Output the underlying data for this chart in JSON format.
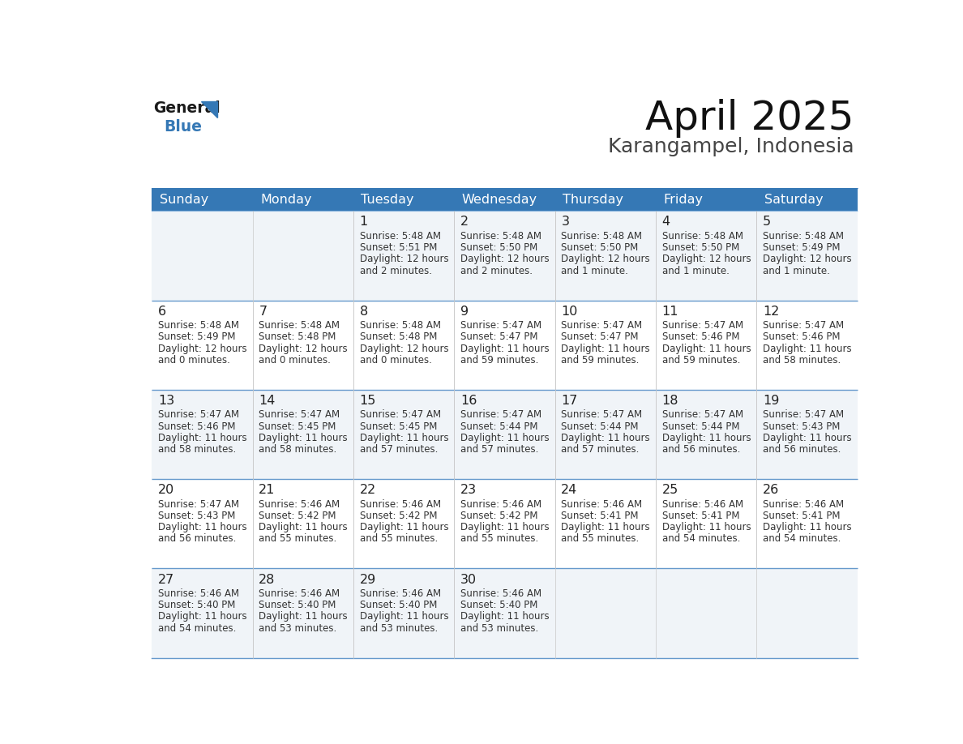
{
  "title": "April 2025",
  "subtitle": "Karangampel, Indonesia",
  "header_bg_color": "#3578b5",
  "header_text_color": "#ffffff",
  "header_days": [
    "Sunday",
    "Monday",
    "Tuesday",
    "Wednesday",
    "Thursday",
    "Friday",
    "Saturday"
  ],
  "row1_bg": "#f0f4f8",
  "row2_bg": "#ffffff",
  "cell_text_color": "#333333",
  "day_number_color": "#222222",
  "border_color": "#3578b5",
  "border_color_light": "#6699cc",
  "logo_general_color": "#1a1a1a",
  "logo_blue_color": "#3578b5",
  "calendar_data": [
    [
      {
        "day": "",
        "sunrise": "",
        "sunset": "",
        "daylight": ""
      },
      {
        "day": "",
        "sunrise": "",
        "sunset": "",
        "daylight": ""
      },
      {
        "day": "1",
        "sunrise": "5:48 AM",
        "sunset": "5:51 PM",
        "daylight": "12 hours\nand 2 minutes."
      },
      {
        "day": "2",
        "sunrise": "5:48 AM",
        "sunset": "5:50 PM",
        "daylight": "12 hours\nand 2 minutes."
      },
      {
        "day": "3",
        "sunrise": "5:48 AM",
        "sunset": "5:50 PM",
        "daylight": "12 hours\nand 1 minute."
      },
      {
        "day": "4",
        "sunrise": "5:48 AM",
        "sunset": "5:50 PM",
        "daylight": "12 hours\nand 1 minute."
      },
      {
        "day": "5",
        "sunrise": "5:48 AM",
        "sunset": "5:49 PM",
        "daylight": "12 hours\nand 1 minute."
      }
    ],
    [
      {
        "day": "6",
        "sunrise": "5:48 AM",
        "sunset": "5:49 PM",
        "daylight": "12 hours\nand 0 minutes."
      },
      {
        "day": "7",
        "sunrise": "5:48 AM",
        "sunset": "5:48 PM",
        "daylight": "12 hours\nand 0 minutes."
      },
      {
        "day": "8",
        "sunrise": "5:48 AM",
        "sunset": "5:48 PM",
        "daylight": "12 hours\nand 0 minutes."
      },
      {
        "day": "9",
        "sunrise": "5:47 AM",
        "sunset": "5:47 PM",
        "daylight": "11 hours\nand 59 minutes."
      },
      {
        "day": "10",
        "sunrise": "5:47 AM",
        "sunset": "5:47 PM",
        "daylight": "11 hours\nand 59 minutes."
      },
      {
        "day": "11",
        "sunrise": "5:47 AM",
        "sunset": "5:46 PM",
        "daylight": "11 hours\nand 59 minutes."
      },
      {
        "day": "12",
        "sunrise": "5:47 AM",
        "sunset": "5:46 PM",
        "daylight": "11 hours\nand 58 minutes."
      }
    ],
    [
      {
        "day": "13",
        "sunrise": "5:47 AM",
        "sunset": "5:46 PM",
        "daylight": "11 hours\nand 58 minutes."
      },
      {
        "day": "14",
        "sunrise": "5:47 AM",
        "sunset": "5:45 PM",
        "daylight": "11 hours\nand 58 minutes."
      },
      {
        "day": "15",
        "sunrise": "5:47 AM",
        "sunset": "5:45 PM",
        "daylight": "11 hours\nand 57 minutes."
      },
      {
        "day": "16",
        "sunrise": "5:47 AM",
        "sunset": "5:44 PM",
        "daylight": "11 hours\nand 57 minutes."
      },
      {
        "day": "17",
        "sunrise": "5:47 AM",
        "sunset": "5:44 PM",
        "daylight": "11 hours\nand 57 minutes."
      },
      {
        "day": "18",
        "sunrise": "5:47 AM",
        "sunset": "5:44 PM",
        "daylight": "11 hours\nand 56 minutes."
      },
      {
        "day": "19",
        "sunrise": "5:47 AM",
        "sunset": "5:43 PM",
        "daylight": "11 hours\nand 56 minutes."
      }
    ],
    [
      {
        "day": "20",
        "sunrise": "5:47 AM",
        "sunset": "5:43 PM",
        "daylight": "11 hours\nand 56 minutes."
      },
      {
        "day": "21",
        "sunrise": "5:46 AM",
        "sunset": "5:42 PM",
        "daylight": "11 hours\nand 55 minutes."
      },
      {
        "day": "22",
        "sunrise": "5:46 AM",
        "sunset": "5:42 PM",
        "daylight": "11 hours\nand 55 minutes."
      },
      {
        "day": "23",
        "sunrise": "5:46 AM",
        "sunset": "5:42 PM",
        "daylight": "11 hours\nand 55 minutes."
      },
      {
        "day": "24",
        "sunrise": "5:46 AM",
        "sunset": "5:41 PM",
        "daylight": "11 hours\nand 55 minutes."
      },
      {
        "day": "25",
        "sunrise": "5:46 AM",
        "sunset": "5:41 PM",
        "daylight": "11 hours\nand 54 minutes."
      },
      {
        "day": "26",
        "sunrise": "5:46 AM",
        "sunset": "5:41 PM",
        "daylight": "11 hours\nand 54 minutes."
      }
    ],
    [
      {
        "day": "27",
        "sunrise": "5:46 AM",
        "sunset": "5:40 PM",
        "daylight": "11 hours\nand 54 minutes."
      },
      {
        "day": "28",
        "sunrise": "5:46 AM",
        "sunset": "5:40 PM",
        "daylight": "11 hours\nand 53 minutes."
      },
      {
        "day": "29",
        "sunrise": "5:46 AM",
        "sunset": "5:40 PM",
        "daylight": "11 hours\nand 53 minutes."
      },
      {
        "day": "30",
        "sunrise": "5:46 AM",
        "sunset": "5:40 PM",
        "daylight": "11 hours\nand 53 minutes."
      },
      {
        "day": "",
        "sunrise": "",
        "sunset": "",
        "daylight": ""
      },
      {
        "day": "",
        "sunrise": "",
        "sunset": "",
        "daylight": ""
      },
      {
        "day": "",
        "sunrise": "",
        "sunset": "",
        "daylight": ""
      }
    ]
  ]
}
